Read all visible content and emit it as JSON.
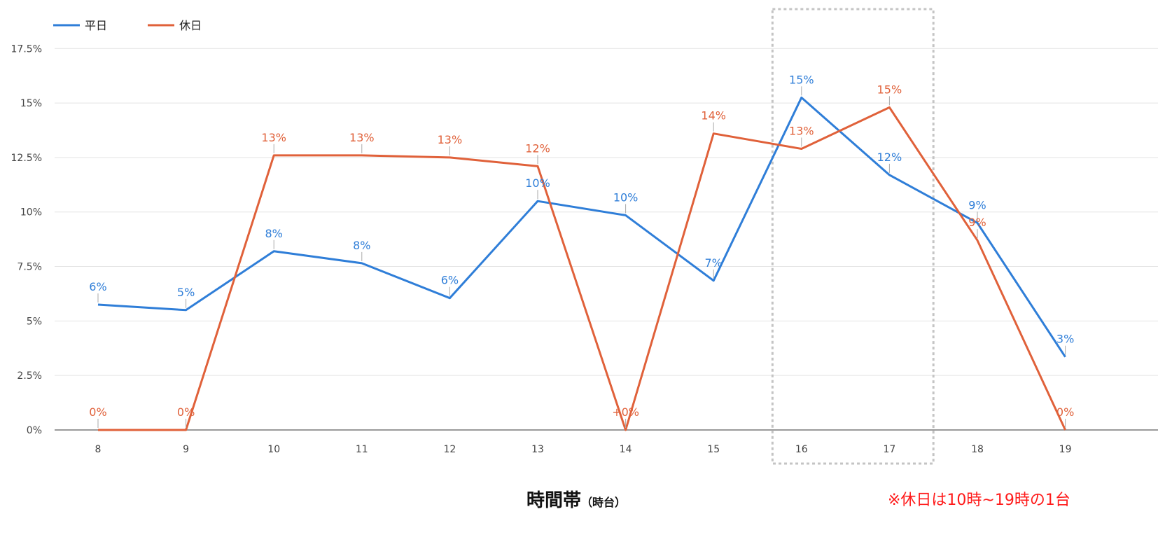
{
  "chart_data": {
    "type": "line",
    "categories": [
      "8",
      "9",
      "10",
      "11",
      "12",
      "13",
      "14",
      "15",
      "16",
      "17",
      "18",
      "19"
    ],
    "series": [
      {
        "name": "平日",
        "color": "#2f7ed8",
        "values": [
          5.75,
          5.5,
          8.2,
          7.65,
          6.05,
          10.5,
          9.85,
          6.85,
          15.25,
          11.7,
          9.5,
          3.35
        ],
        "labels": [
          "6%",
          "5%",
          "8%",
          "8%",
          "6%",
          "10%",
          "10%",
          "7%",
          "15%",
          "12%",
          "9%",
          "3%"
        ]
      },
      {
        "name": "休日",
        "color": "#e0613a",
        "values": [
          0,
          0,
          12.6,
          12.6,
          12.5,
          12.1,
          0,
          13.6,
          12.9,
          14.8,
          8.7,
          0
        ],
        "labels": [
          "0%",
          "0%",
          "13%",
          "13%",
          "13%",
          "12%",
          "+0%",
          "14%",
          "13%",
          "15%",
          "9%",
          "0%"
        ]
      }
    ],
    "yticks": [
      "0%",
      "2.5%",
      "5%",
      "7.5%",
      "10%",
      "12.5%",
      "15%",
      "17.5%"
    ],
    "ylim": [
      0,
      17.5
    ],
    "grid": true,
    "legend": "top-left",
    "highlight_categories": [
      "16",
      "17"
    ],
    "xlabel": "時間帯",
    "xlabel_sub": "（時台）",
    "footnote": "※休日は10時~19時の1台"
  }
}
